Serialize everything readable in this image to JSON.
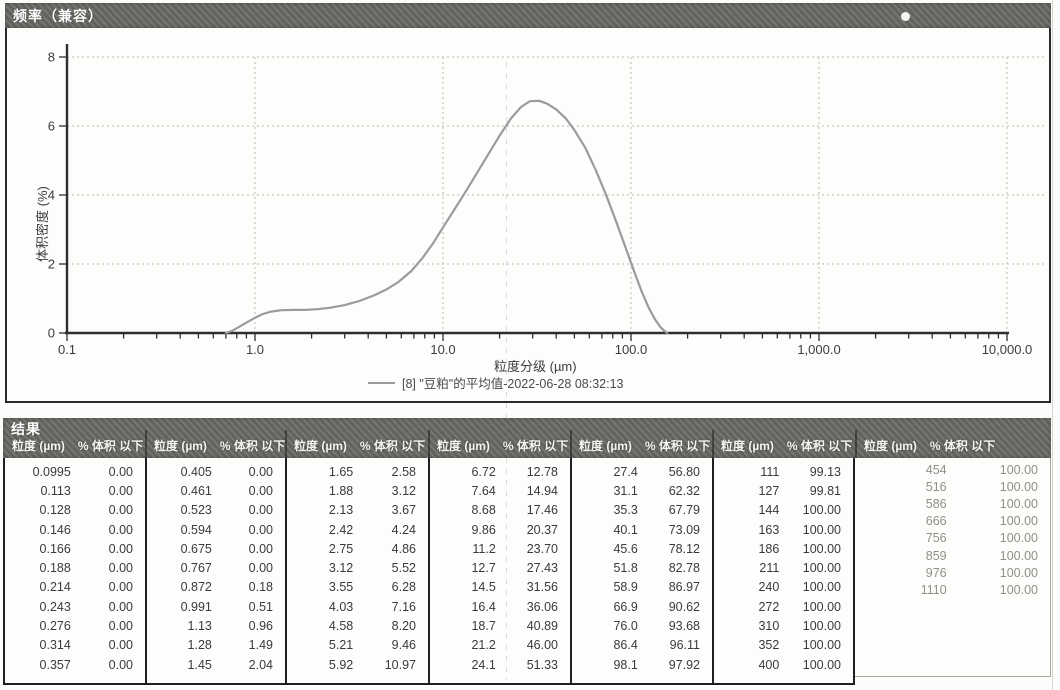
{
  "chart": {
    "title": "频率（兼容）",
    "y_axis": {
      "title": "体积密度 (%)",
      "ticks": [
        "0",
        "2",
        "4",
        "6",
        "8"
      ]
    },
    "x_axis": {
      "title": "粒度分级 (µm)",
      "ticks": [
        {
          "v": 0.1,
          "label": "0.1"
        },
        {
          "v": 1,
          "label": "1.0"
        },
        {
          "v": 10,
          "label": "10.0"
        },
        {
          "v": 100,
          "label": "100.0"
        },
        {
          "v": 1000,
          "label": "1,000.0"
        },
        {
          "v": 10000,
          "label": "10,000.0"
        }
      ]
    },
    "legend": {
      "label": "[8] \"豆粕\"的平均值-2022-06-28 08:32:13"
    }
  },
  "chart_data": {
    "type": "line",
    "title": "频率（兼容）",
    "xlabel": "粒度分级 (µm)",
    "ylabel": "体积密度 (%)",
    "x_scale": "log",
    "xlim": [
      0.1,
      10000
    ],
    "ylim": [
      0,
      8
    ],
    "grid": true,
    "legend_position": "bottom-center",
    "series": [
      {
        "name": "[8] \"豆粕\"的平均值-2022-06-28 08:32:13",
        "points": [
          [
            0.7,
            0.0
          ],
          [
            0.76,
            0.07
          ],
          [
            0.82,
            0.17
          ],
          [
            0.9,
            0.3
          ],
          [
            1.0,
            0.44
          ],
          [
            1.1,
            0.55
          ],
          [
            1.22,
            0.62
          ],
          [
            1.38,
            0.66
          ],
          [
            1.6,
            0.67
          ],
          [
            1.85,
            0.67
          ],
          [
            2.15,
            0.69
          ],
          [
            2.5,
            0.73
          ],
          [
            3.0,
            0.81
          ],
          [
            3.6,
            0.93
          ],
          [
            4.3,
            1.09
          ],
          [
            5.0,
            1.26
          ],
          [
            5.8,
            1.48
          ],
          [
            6.8,
            1.8
          ],
          [
            7.8,
            2.18
          ],
          [
            8.9,
            2.62
          ],
          [
            10.0,
            3.06
          ],
          [
            11.5,
            3.58
          ],
          [
            13.2,
            4.1
          ],
          [
            15.2,
            4.65
          ],
          [
            17.5,
            5.2
          ],
          [
            20.0,
            5.72
          ],
          [
            23.0,
            6.22
          ],
          [
            26.0,
            6.55
          ],
          [
            29.0,
            6.72
          ],
          [
            32.5,
            6.73
          ],
          [
            36.0,
            6.64
          ],
          [
            40.0,
            6.48
          ],
          [
            45.0,
            6.22
          ],
          [
            50.0,
            5.88
          ],
          [
            57.0,
            5.38
          ],
          [
            65.0,
            4.72
          ],
          [
            74.0,
            3.98
          ],
          [
            84.0,
            3.18
          ],
          [
            94.0,
            2.45
          ],
          [
            104,
            1.78
          ],
          [
            114,
            1.2
          ],
          [
            124,
            0.74
          ],
          [
            134,
            0.4
          ],
          [
            143,
            0.18
          ],
          [
            150,
            0.07
          ],
          [
            156,
            0.0
          ]
        ]
      }
    ]
  },
  "results": {
    "title": "结果",
    "col_headers": {
      "size": "粒度 (µm)",
      "pct": "% 体积 以下"
    },
    "tables": [
      {
        "rows": [
          [
            "0.0995",
            "0.00"
          ],
          [
            "0.113",
            "0.00"
          ],
          [
            "0.128",
            "0.00"
          ],
          [
            "0.146",
            "0.00"
          ],
          [
            "0.166",
            "0.00"
          ],
          [
            "0.188",
            "0.00"
          ],
          [
            "0.214",
            "0.00"
          ],
          [
            "0.243",
            "0.00"
          ],
          [
            "0.276",
            "0.00"
          ],
          [
            "0.314",
            "0.00"
          ],
          [
            "0.357",
            "0.00"
          ]
        ]
      },
      {
        "rows": [
          [
            "0.405",
            "0.00"
          ],
          [
            "0.461",
            "0.00"
          ],
          [
            "0.523",
            "0.00"
          ],
          [
            "0.594",
            "0.00"
          ],
          [
            "0.675",
            "0.00"
          ],
          [
            "0.767",
            "0.00"
          ],
          [
            "0.872",
            "0.18"
          ],
          [
            "0.991",
            "0.51"
          ],
          [
            "1.13",
            "0.96"
          ],
          [
            "1.28",
            "1.49"
          ],
          [
            "1.45",
            "2.04"
          ]
        ]
      },
      {
        "rows": [
          [
            "1.65",
            "2.58"
          ],
          [
            "1.88",
            "3.12"
          ],
          [
            "2.13",
            "3.67"
          ],
          [
            "2.42",
            "4.24"
          ],
          [
            "2.75",
            "4.86"
          ],
          [
            "3.12",
            "5.52"
          ],
          [
            "3.55",
            "6.28"
          ],
          [
            "4.03",
            "7.16"
          ],
          [
            "4.58",
            "8.20"
          ],
          [
            "5.21",
            "9.46"
          ],
          [
            "5.92",
            "10.97"
          ]
        ]
      },
      {
        "rows": [
          [
            "6.72",
            "12.78"
          ],
          [
            "7.64",
            "14.94"
          ],
          [
            "8.68",
            "17.46"
          ],
          [
            "9.86",
            "20.37"
          ],
          [
            "11.2",
            "23.70"
          ],
          [
            "12.7",
            "27.43"
          ],
          [
            "14.5",
            "31.56"
          ],
          [
            "16.4",
            "36.06"
          ],
          [
            "18.7",
            "40.89"
          ],
          [
            "21.2",
            "46.00"
          ],
          [
            "24.1",
            "51.33"
          ]
        ]
      },
      {
        "rows": [
          [
            "27.4",
            "56.80"
          ],
          [
            "31.1",
            "62.32"
          ],
          [
            "35.3",
            "67.79"
          ],
          [
            "40.1",
            "73.09"
          ],
          [
            "45.6",
            "78.12"
          ],
          [
            "51.8",
            "82.78"
          ],
          [
            "58.9",
            "86.97"
          ],
          [
            "66.9",
            "90.62"
          ],
          [
            "76.0",
            "93.68"
          ],
          [
            "86.4",
            "96.11"
          ],
          [
            "98.1",
            "97.92"
          ]
        ]
      },
      {
        "rows": [
          [
            "111",
            "99.13"
          ],
          [
            "127",
            "99.81"
          ],
          [
            "144",
            "100.00"
          ],
          [
            "163",
            "100.00"
          ],
          [
            "186",
            "100.00"
          ],
          [
            "211",
            "100.00"
          ],
          [
            "240",
            "100.00"
          ],
          [
            "272",
            "100.00"
          ],
          [
            "310",
            "100.00"
          ],
          [
            "352",
            "100.00"
          ],
          [
            "400",
            "100.00"
          ]
        ]
      },
      {
        "rows": [
          [
            "454",
            "100.00"
          ],
          [
            "516",
            "100.00"
          ],
          [
            "586",
            "100.00"
          ],
          [
            "666",
            "100.00"
          ],
          [
            "756",
            "100.00"
          ],
          [
            "859",
            "100.00"
          ],
          [
            "976",
            "100.00"
          ],
          [
            "1110",
            "100.00"
          ]
        ]
      }
    ]
  }
}
